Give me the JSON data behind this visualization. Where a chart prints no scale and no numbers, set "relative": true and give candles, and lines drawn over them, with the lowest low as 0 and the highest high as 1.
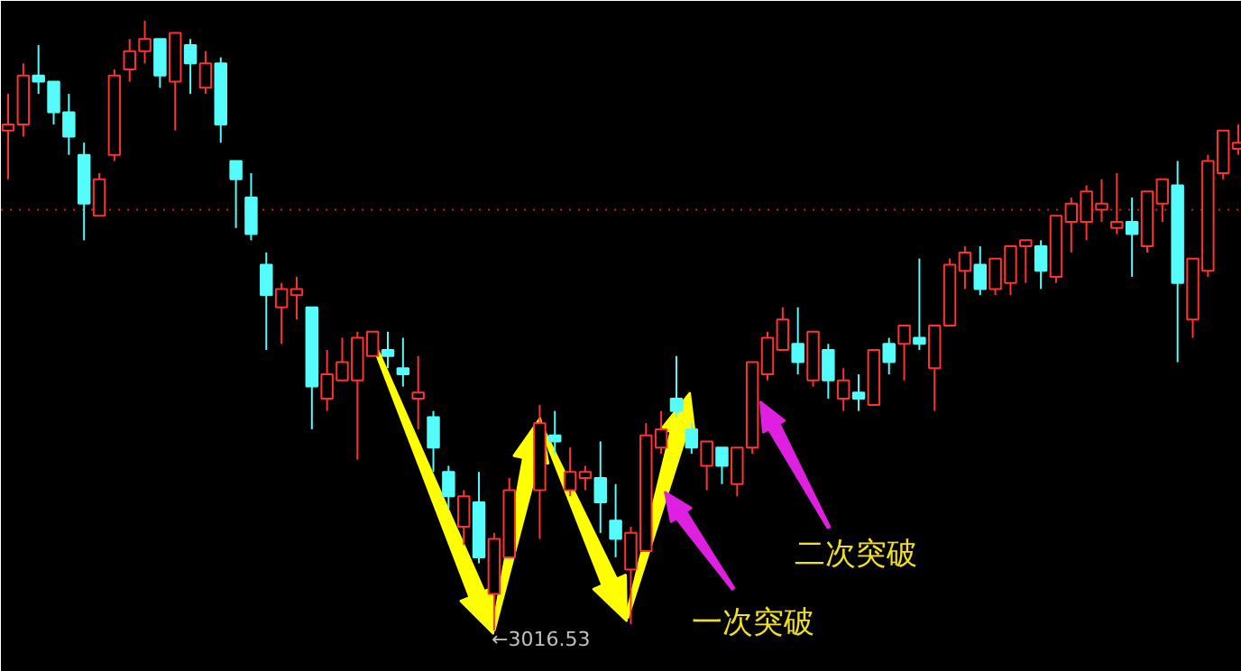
{
  "chart_data": {
    "type": "candlestick",
    "relative": true,
    "categories": [
      null,
      null,
      null,
      null,
      null,
      null,
      null,
      null,
      null,
      null,
      null,
      null,
      null,
      null,
      null,
      null,
      null,
      null,
      null,
      null,
      null,
      null,
      null,
      null,
      null,
      null,
      null,
      null,
      null,
      null,
      null,
      null,
      null,
      null,
      null,
      null,
      null,
      null,
      null,
      null,
      null,
      null,
      null,
      null,
      null,
      null,
      null,
      null,
      null,
      null,
      null,
      null,
      null,
      null,
      null,
      null,
      null,
      null,
      null,
      null,
      null,
      null,
      null,
      null,
      null,
      null,
      null,
      null,
      null,
      null,
      null,
      null,
      null,
      null,
      null,
      null,
      null,
      null,
      null,
      null,
      null,
      null
    ],
    "ohlc": [
      [
        0.82,
        0.88,
        0.74,
        0.83
      ],
      [
        0.83,
        0.93,
        0.81,
        0.91
      ],
      [
        0.91,
        0.96,
        0.88,
        0.9
      ],
      [
        0.9,
        0.9,
        0.83,
        0.85
      ],
      [
        0.85,
        0.88,
        0.78,
        0.81
      ],
      [
        0.78,
        0.8,
        0.64,
        0.7
      ],
      [
        0.68,
        0.75,
        0.68,
        0.74
      ],
      [
        0.78,
        0.92,
        0.77,
        0.91
      ],
      [
        0.92,
        0.97,
        0.9,
        0.95
      ],
      [
        0.95,
        1.0,
        0.93,
        0.97
      ],
      [
        0.97,
        0.97,
        0.89,
        0.91
      ],
      [
        0.9,
        0.98,
        0.82,
        0.98
      ],
      [
        0.96,
        0.97,
        0.88,
        0.93
      ],
      [
        0.89,
        0.95,
        0.88,
        0.93
      ],
      [
        0.93,
        0.94,
        0.8,
        0.83
      ],
      [
        0.77,
        0.77,
        0.66,
        0.74
      ],
      [
        0.71,
        0.75,
        0.64,
        0.65
      ],
      [
        0.6,
        0.62,
        0.46,
        0.55
      ],
      [
        0.53,
        0.57,
        0.47,
        0.56
      ],
      [
        0.55,
        0.58,
        0.51,
        0.56
      ],
      [
        0.53,
        0.53,
        0.33,
        0.4
      ],
      [
        0.38,
        0.46,
        0.36,
        0.42
      ],
      [
        0.41,
        0.48,
        0.41,
        0.44
      ],
      [
        0.41,
        0.49,
        0.28,
        0.48
      ],
      [
        0.45,
        0.49,
        0.45,
        0.49
      ],
      [
        0.46,
        0.49,
        0.43,
        0.45
      ],
      [
        0.43,
        0.48,
        0.4,
        0.42
      ],
      [
        0.38,
        0.45,
        0.33,
        0.39
      ],
      [
        0.35,
        0.36,
        0.26,
        0.3
      ],
      [
        0.26,
        0.27,
        0.2,
        0.22
      ],
      [
        0.17,
        0.23,
        0.14,
        0.22
      ],
      [
        0.21,
        0.26,
        0.11,
        0.12
      ],
      [
        0.06,
        0.16,
        0.0,
        0.15
      ],
      [
        0.12,
        0.25,
        0.12,
        0.23
      ],
      null,
      [
        0.23,
        0.37,
        0.15,
        0.34
      ],
      [
        0.32,
        0.36,
        0.29,
        0.31
      ],
      [
        0.23,
        0.3,
        0.22,
        0.26
      ],
      [
        0.25,
        0.27,
        0.23,
        0.26
      ],
      [
        0.25,
        0.31,
        0.16,
        0.21
      ],
      [
        0.18,
        0.24,
        0.12,
        0.15
      ],
      [
        0.1,
        0.17,
        0.01,
        0.16
      ],
      [
        0.13,
        0.34,
        0.13,
        0.32
      ],
      [
        0.3,
        0.36,
        0.29,
        0.33
      ],
      [
        0.38,
        0.45,
        0.35,
        0.36
      ],
      [
        0.33,
        0.34,
        0.29,
        0.3
      ],
      [
        0.27,
        0.31,
        0.23,
        0.31
      ],
      [
        0.3,
        0.3,
        0.24,
        0.27
      ],
      [
        0.24,
        0.3,
        0.22,
        0.3
      ],
      [
        0.3,
        0.44,
        0.29,
        0.44
      ],
      [
        0.42,
        0.49,
        0.41,
        0.48
      ],
      [
        0.46,
        0.53,
        0.46,
        0.51
      ],
      [
        0.47,
        0.53,
        0.42,
        0.44
      ],
      [
        0.41,
        0.49,
        0.4,
        0.49
      ],
      [
        0.46,
        0.47,
        0.38,
        0.41
      ],
      [
        0.38,
        0.43,
        0.36,
        0.41
      ],
      [
        0.39,
        0.42,
        0.36,
        0.38
      ],
      [
        0.37,
        0.46,
        0.37,
        0.46
      ],
      [
        0.47,
        0.48,
        0.42,
        0.44
      ],
      [
        0.47,
        0.5,
        0.41,
        0.5
      ],
      [
        0.48,
        0.61,
        0.46,
        0.47
      ],
      [
        0.43,
        0.5,
        0.36,
        0.5
      ],
      [
        0.5,
        0.61,
        0.5,
        0.6
      ],
      [
        0.59,
        0.63,
        0.56,
        0.62
      ],
      [
        0.6,
        0.63,
        0.55,
        0.56
      ],
      [
        0.56,
        0.61,
        0.55,
        0.61
      ],
      [
        0.57,
        0.63,
        0.55,
        0.63
      ],
      [
        0.63,
        0.64,
        0.57,
        0.64
      ],
      [
        0.63,
        0.64,
        0.56,
        0.59
      ],
      [
        0.58,
        0.68,
        0.57,
        0.68
      ],
      [
        0.67,
        0.71,
        0.62,
        0.7
      ],
      [
        0.67,
        0.73,
        0.64,
        0.72
      ],
      [
        0.69,
        0.74,
        0.67,
        0.7
      ],
      [
        0.66,
        0.75,
        0.65,
        0.67
      ],
      [
        0.67,
        0.71,
        0.58,
        0.65
      ],
      [
        0.63,
        0.72,
        0.62,
        0.72
      ],
      [
        0.7,
        0.74,
        0.67,
        0.74
      ],
      [
        0.73,
        0.77,
        0.44,
        0.57
      ],
      [
        0.51,
        0.61,
        0.48,
        0.61
      ],
      [
        0.59,
        0.78,
        0.58,
        0.77
      ],
      [
        0.75,
        0.82,
        0.74,
        0.82
      ],
      [
        0.79,
        0.83,
        0.78,
        0.8
      ]
    ],
    "colors": [
      "#ff3232",
      "#ff3232",
      "#54fcfc",
      "#54fcfc",
      "#54fcfc",
      "#54fcfc",
      "#ff3232",
      "#ff3232",
      "#ff3232",
      "#ff3232",
      "#54fcfc",
      "#ff3232",
      "#54fcfc",
      "#ff3232",
      "#54fcfc",
      "#54fcfc",
      "#54fcfc",
      "#54fcfc",
      "#ff3232",
      "#ff3232",
      "#54fcfc",
      "#ff3232",
      "#ff3232",
      "#ff3232",
      "#ff3232",
      "#54fcfc",
      "#54fcfc",
      "#ff3232",
      "#54fcfc",
      "#54fcfc",
      "#ff3232",
      "#54fcfc",
      "#ff3232",
      "#ff3232",
      "#ff3232",
      "#ff3232",
      "#54fcfc",
      "#ff3232",
      "#ff3232",
      "#54fcfc",
      "#54fcfc",
      "#ff3232",
      "#ff3232",
      "#ff3232",
      "#54fcfc",
      "#54fcfc",
      "#ff3232",
      "#54fcfc",
      "#ff3232",
      "#ff3232",
      "#ff3232",
      "#ff3232",
      "#54fcfc",
      "#ff3232",
      "#54fcfc",
      "#ff3232",
      "#54fcfc",
      "#ff3232",
      "#54fcfc",
      "#ff3232",
      "#54fcfc",
      "#ff3232",
      "#ff3232",
      "#ff3232",
      "#54fcfc",
      "#ff3232",
      "#ff3232",
      "#ff3232",
      "#54fcfc",
      "#ff3232",
      "#ff3232",
      "#ff3232",
      "#ff3232",
      "#ff3232",
      "#54fcfc",
      "#ff3232",
      "#ff3232",
      "#54fcfc",
      "#ff3232",
      "#ff3232",
      "#ff3232",
      "#ff3232"
    ],
    "ref_lines": [
      {
        "axis": "y",
        "value": 0.69,
        "color": "#c02020",
        "line_style": "dotted"
      }
    ],
    "annotations": [
      "←3016.53",
      "一次突破",
      "二次突破"
    ]
  }
}
